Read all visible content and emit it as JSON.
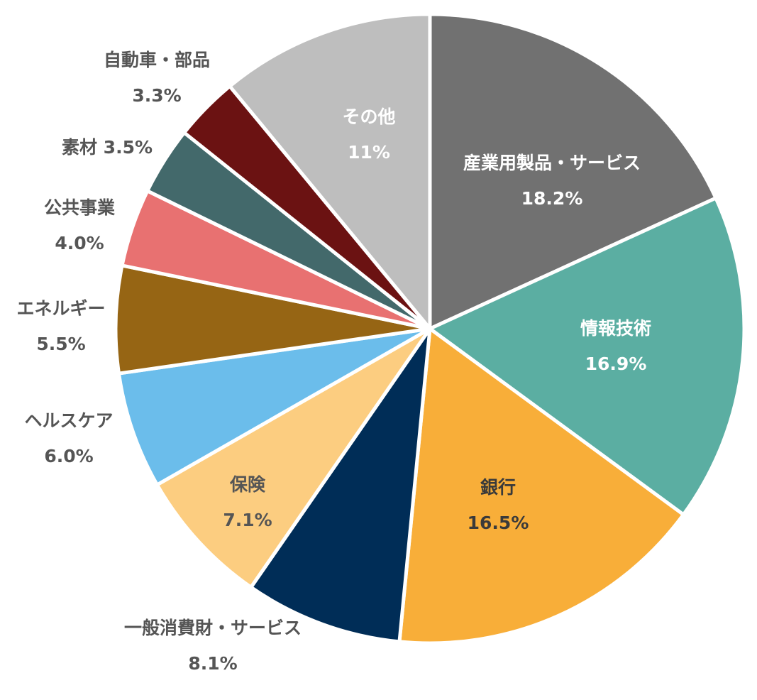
{
  "chart_data": {
    "type": "pie",
    "title": "",
    "start_angle_deg": 0,
    "direction": "clockwise",
    "legend": "none (data labels on/around slices)",
    "categories": [
      "産業用製品・サービス",
      "情報技術",
      "銀行",
      "一般消費財・サービス",
      "保険",
      "ヘルスケア",
      "エネルギー",
      "公共事業",
      "素材",
      "自動車・部品",
      "その他"
    ],
    "values": [
      18.2,
      16.9,
      16.5,
      8.1,
      7.1,
      6.0,
      5.5,
      4.0,
      3.5,
      3.3,
      11
    ],
    "slices": [
      {
        "label": "産業用製品・サービス",
        "value": 18.2,
        "display": "18.2%",
        "color": "#717171",
        "label_color": "#ffffff",
        "label_pos": "inside"
      },
      {
        "label": "情報技術",
        "value": 16.9,
        "display": "16.9%",
        "color": "#5BAEA2",
        "label_color": "#ffffff",
        "label_pos": "inside"
      },
      {
        "label": "銀行",
        "value": 16.5,
        "display": "16.5%",
        "color": "#F8AE39",
        "label_color": "#3a3a3a",
        "label_pos": "inside"
      },
      {
        "label": "一般消費財・サービス",
        "value": 8.1,
        "display": "8.1%",
        "color": "#002D57",
        "label_color": "#555555",
        "label_pos": "outside"
      },
      {
        "label": "保険",
        "value": 7.1,
        "display": "7.1%",
        "color": "#FCCD80",
        "label_color": "#555555",
        "label_pos": "inside"
      },
      {
        "label": "ヘルスケア",
        "value": 6.0,
        "display": "6.0%",
        "color": "#6BBDEB",
        "label_color": "#555555",
        "label_pos": "outside"
      },
      {
        "label": "エネルギー",
        "value": 5.5,
        "display": "5.5%",
        "color": "#966514",
        "label_color": "#555555",
        "label_pos": "outside"
      },
      {
        "label": "公共事業",
        "value": 4.0,
        "display": "4.0%",
        "color": "#E87171",
        "label_color": "#555555",
        "label_pos": "outside"
      },
      {
        "label": "素材",
        "value": 3.5,
        "display": "3.5%",
        "color": "#43696B",
        "label_color": "#555555",
        "label_pos": "outside"
      },
      {
        "label": "自動車・部品",
        "value": 3.3,
        "display": "3.3%",
        "color": "#6B1212",
        "label_color": "#555555",
        "label_pos": "outside"
      },
      {
        "label": "その他",
        "value": 11,
        "display": "11%",
        "color": "#BEBEBE",
        "label_color": "#ffffff",
        "label_pos": "inside"
      }
    ]
  },
  "labels": {
    "industrials": {
      "name": "産業用製品・サービス",
      "pct": "18.2%"
    },
    "it": {
      "name": "情報技術",
      "pct": "16.9%"
    },
    "banks": {
      "name": "銀行",
      "pct": "16.5%"
    },
    "consumer": {
      "name": "一般消費財・サービス",
      "pct": "8.1%"
    },
    "insurance": {
      "name": "保険",
      "pct": "7.1%"
    },
    "healthcare": {
      "name": "ヘルスケア",
      "pct": "6.0%"
    },
    "energy": {
      "name": "エネルギー",
      "pct": "5.5%"
    },
    "utilities": {
      "name": "公共事業",
      "pct": "4.0%"
    },
    "materials": {
      "name": "素材 3.5%"
    },
    "autos": {
      "name": "自動車・部品",
      "pct": "3.3%"
    },
    "other": {
      "name": "その他",
      "pct": "11%"
    }
  }
}
